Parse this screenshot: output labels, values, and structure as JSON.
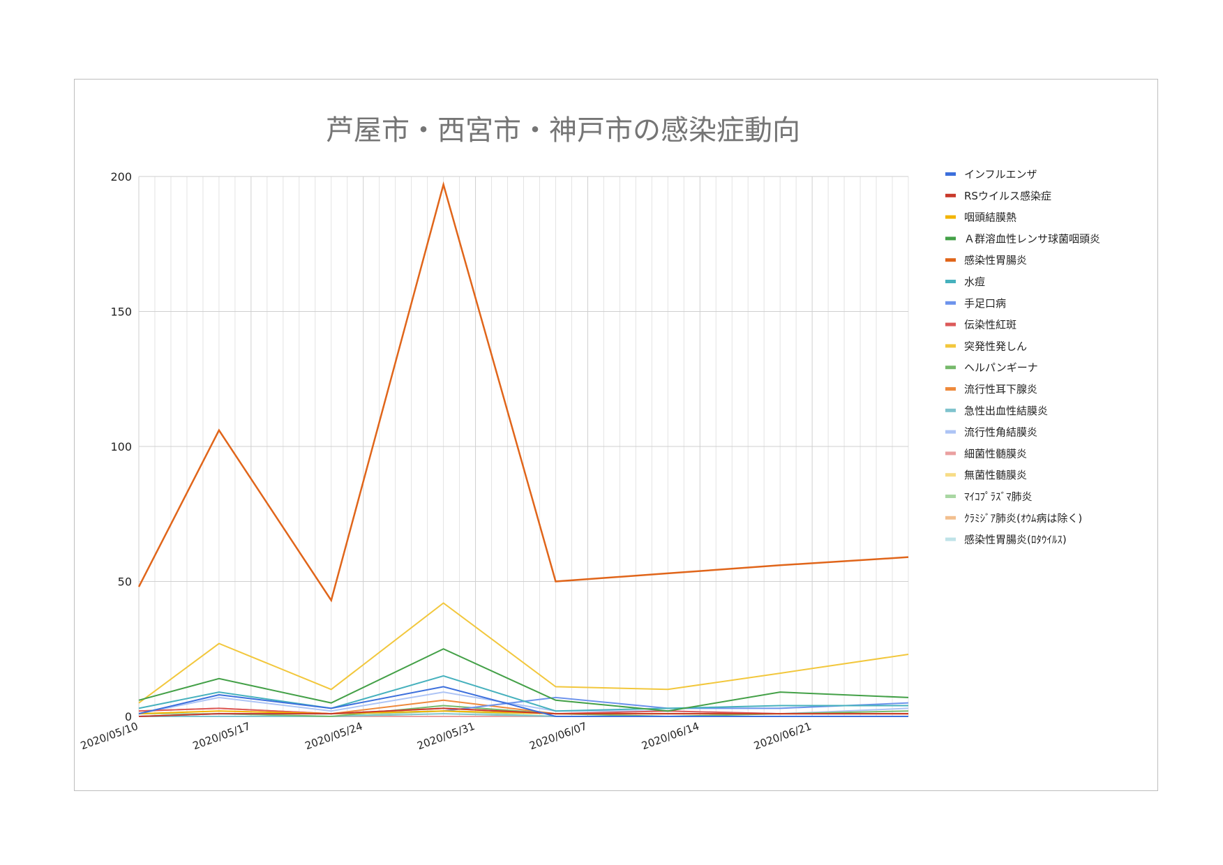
{
  "chart_data": {
    "type": "line",
    "title": "芦屋市・西宮市・神戸市の感染症動向",
    "xlabel": "",
    "ylabel": "",
    "ylim": [
      0,
      200
    ],
    "yticks": [
      0,
      50,
      100,
      150,
      200
    ],
    "x_range": [
      "2020/05/10",
      "2020/06/27"
    ],
    "xtick_labels": [
      "2020/05/10",
      "2020/05/17",
      "2020/05/24",
      "2020/05/31",
      "2020/06/07",
      "2020/06/14",
      "2020/06/21"
    ],
    "x": [
      "2020/05/10",
      "2020/05/15",
      "2020/05/22",
      "2020/05/29",
      "2020/06/05",
      "2020/06/12",
      "2020/06/19",
      "2020/06/27"
    ],
    "grid": true,
    "legend_position": "right",
    "series": [
      {
        "name": "インフルエンザ",
        "color": "#3c6fdc",
        "values": [
          1,
          8,
          3,
          11,
          0,
          0,
          0,
          0
        ]
      },
      {
        "name": "RSウイルス感染症",
        "color": "#c8392b",
        "values": [
          0,
          1,
          1,
          3,
          1,
          1,
          1,
          1
        ]
      },
      {
        "name": "咽頭結膜熱",
        "color": "#f2b400",
        "values": [
          1,
          2,
          1,
          2,
          1,
          1,
          1,
          1
        ]
      },
      {
        "name": "Ａ群溶血性レンサ球菌咽頭炎",
        "color": "#43a047",
        "values": [
          6,
          14,
          5,
          25,
          6,
          2,
          9,
          7
        ]
      },
      {
        "name": "感染性胃腸炎",
        "color": "#e0651a",
        "values": [
          48,
          106,
          43,
          197,
          50,
          53,
          56,
          59
        ]
      },
      {
        "name": "水痘",
        "color": "#46b1bd",
        "values": [
          3,
          9,
          3,
          15,
          2,
          3,
          4,
          4
        ]
      },
      {
        "name": "手足口病",
        "color": "#6d93ec",
        "values": [
          0,
          1,
          1,
          2,
          7,
          3,
          3,
          5
        ]
      },
      {
        "name": "伝染性紅斑",
        "color": "#dc5a5a",
        "values": [
          2,
          3,
          1,
          3,
          1,
          2,
          1,
          1
        ]
      },
      {
        "name": "突発性発しん",
        "color": "#f2c73c",
        "values": [
          5,
          27,
          10,
          42,
          11,
          10,
          16,
          23
        ]
      },
      {
        "name": "ヘルパンギーナ",
        "color": "#76b96b",
        "values": [
          0,
          1,
          0,
          4,
          1,
          0,
          1,
          2
        ]
      },
      {
        "name": "流行性耳下腺炎",
        "color": "#ee8a3c",
        "values": [
          2,
          3,
          1,
          6,
          1,
          1,
          1,
          1
        ]
      },
      {
        "name": "急性出血性結膜炎",
        "color": "#7fc3cd",
        "values": [
          0,
          0,
          0,
          1,
          0,
          0,
          0,
          0
        ]
      },
      {
        "name": "流行性角結膜炎",
        "color": "#adc4f5",
        "values": [
          1,
          7,
          2,
          9,
          2,
          2,
          1,
          3
        ]
      },
      {
        "name": "細菌性髄膜炎",
        "color": "#eaa0a0",
        "values": [
          0,
          0,
          0,
          0,
          0,
          0,
          0,
          0
        ]
      },
      {
        "name": "無菌性髄膜炎",
        "color": "#f7dc86",
        "values": [
          0,
          0,
          0,
          0,
          0,
          0,
          0,
          0
        ]
      },
      {
        "name": "ﾏｲｺﾌﾟﾗｽﾞﾏ肺炎",
        "color": "#a9d7a3",
        "values": [
          1,
          1,
          0,
          2,
          0,
          0,
          0,
          0
        ]
      },
      {
        "name": "ｸﾗﾐｼﾞｱ肺炎(ｵｳﾑ病は除く)",
        "color": "#f2bf8f",
        "values": [
          0,
          0,
          0,
          0,
          0,
          0,
          0,
          0
        ]
      },
      {
        "name": "感染性胃腸炎(ﾛﾀｳｲﾙｽ)",
        "color": "#bfe3e8",
        "values": [
          0,
          0,
          0,
          0,
          0,
          0,
          0,
          0
        ]
      }
    ]
  }
}
